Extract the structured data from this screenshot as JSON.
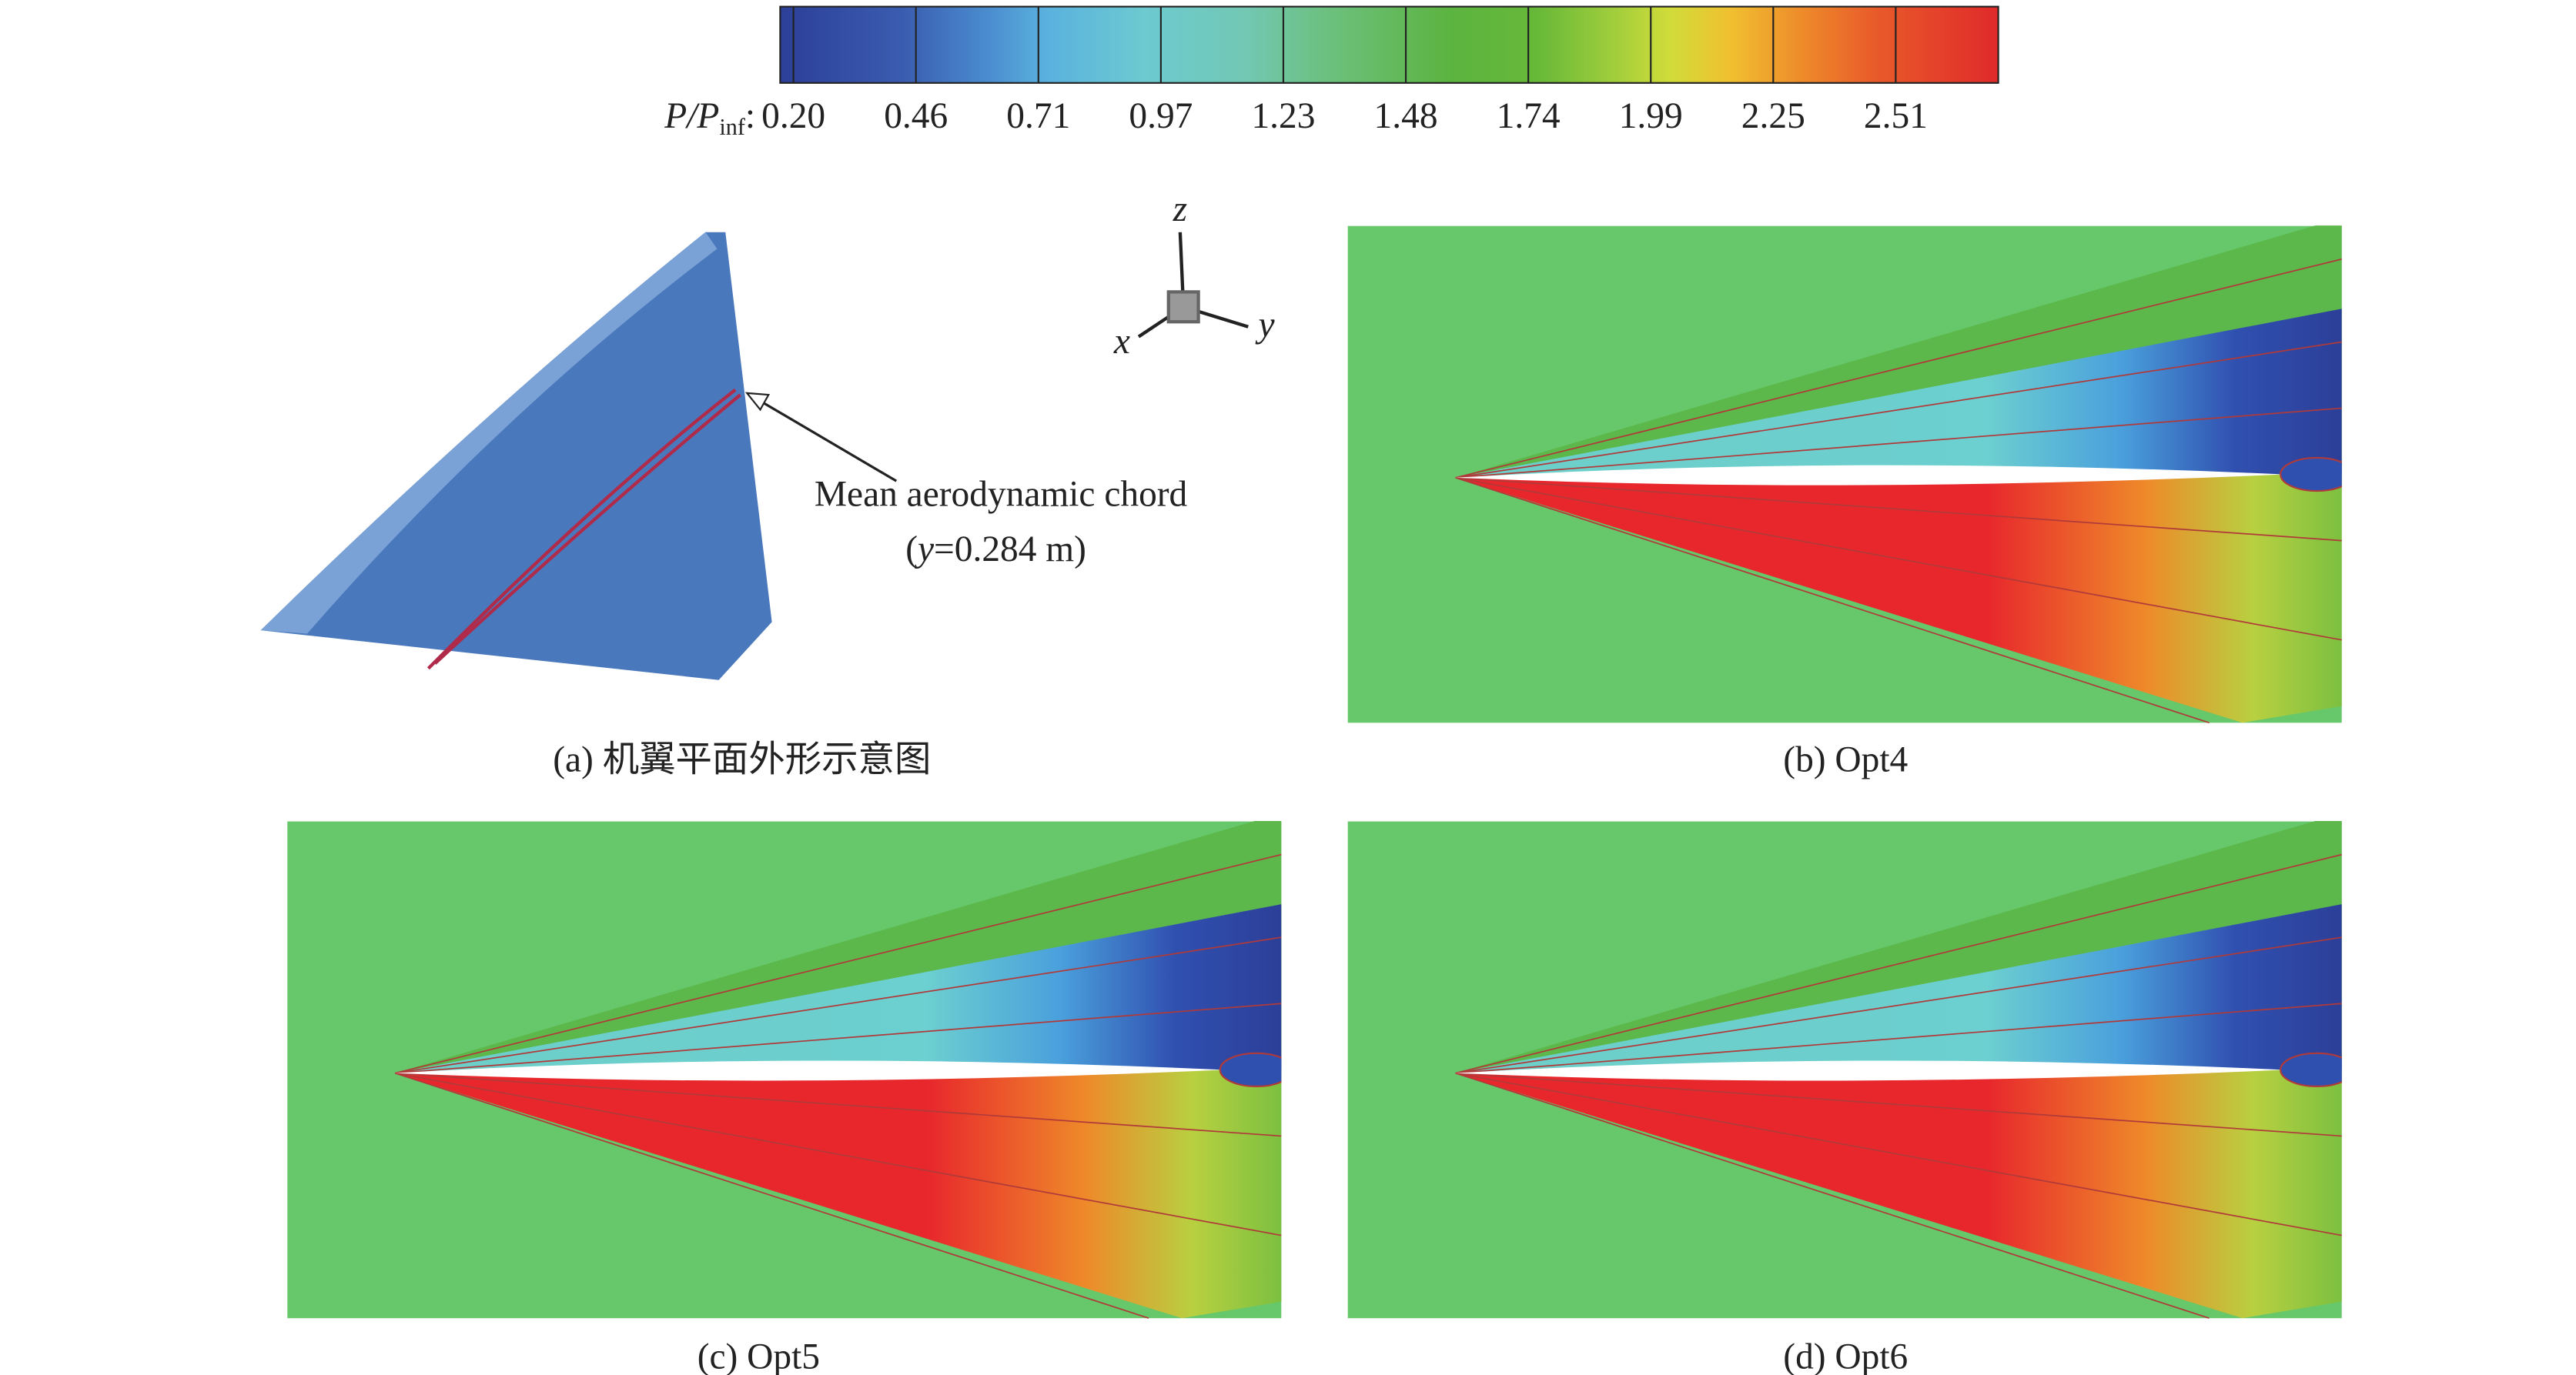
{
  "colorbar": {
    "label": {
      "main": "P/P",
      "sub": "inf",
      "sep": ":"
    },
    "labels": [
      "0.20",
      "0.46",
      "0.71",
      "0.97",
      "1.23",
      "1.48",
      "1.74",
      "1.99",
      "2.25",
      "2.51"
    ]
  },
  "axes_triad": {
    "z": "z",
    "x": "x",
    "y": "y"
  },
  "annotation": {
    "text": "Mean aerodynamic chord",
    "position": [
      "(",
      "y",
      "=0.284 m)"
    ]
  },
  "captions": [
    "(a) 机翼平面外形示意图",
    "(b) Opt4",
    "(c) Opt5",
    "(d) Opt6"
  ]
}
